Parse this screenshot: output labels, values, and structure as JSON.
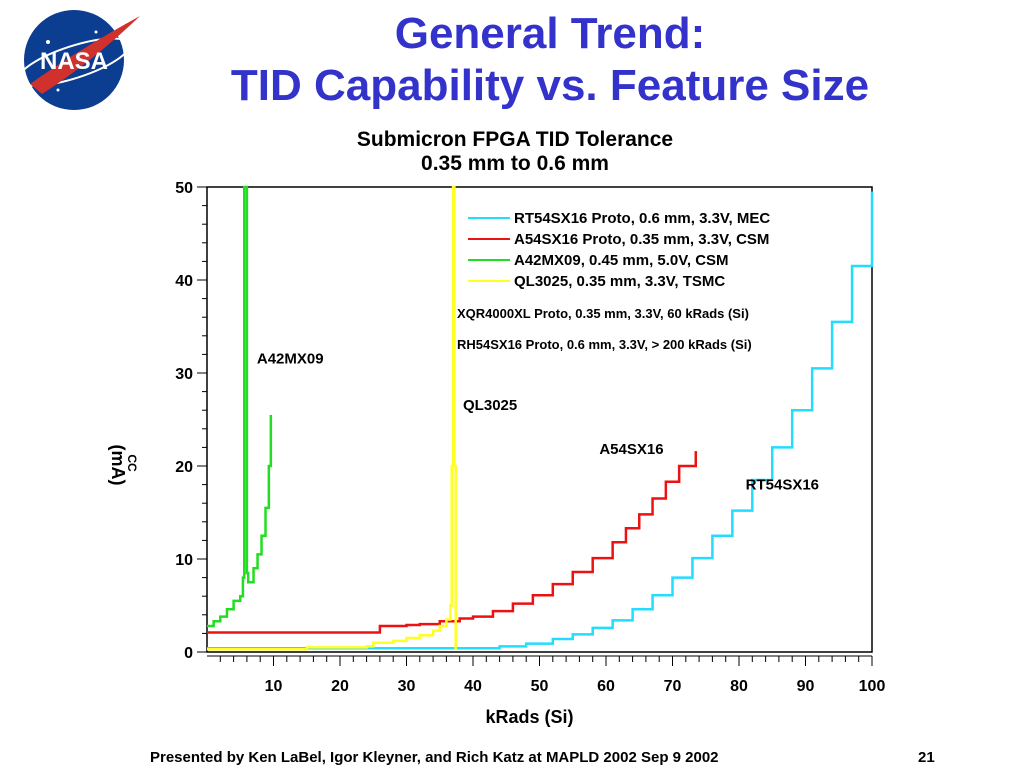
{
  "slide": {
    "title_line1": "General Trend:",
    "title_line2": "TID Capability vs. Feature Size",
    "footer": "Presented by Ken LaBel, Igor Kleyner, and Rich Katz at MAPLD 2002 Sep 9 2002",
    "page_number": "21",
    "logo_text": "NASA",
    "title_color": "#3333cc"
  },
  "chart_data": {
    "type": "line",
    "title": "Submicron FPGA TID Tolerance",
    "subtitle": "0.35 mm to 0.6 mm",
    "xlabel": "kRads (Si)",
    "ylabel": "(mA)",
    "ylabel_sub": "CC",
    "xlim": [
      0,
      100
    ],
    "ylim": [
      0,
      50
    ],
    "x_ticks": [
      10,
      20,
      30,
      40,
      50,
      60,
      70,
      80,
      90,
      100
    ],
    "y_ticks": [
      0,
      10,
      20,
      30,
      40,
      50
    ],
    "legend": [
      {
        "label": "RT54SX16 Proto, 0.6 mm, 3.3V, MEC",
        "color": "#22ddff"
      },
      {
        "label": "A54SX16 Proto, 0.35 mm, 3.3V, CSM",
        "color": "#ee1111"
      },
      {
        "label": "A42MX09, 0.45 mm, 5.0V, CSM",
        "color": "#22dd22"
      },
      {
        "label": "QL3025, 0.35 mm, 3.3V, TSMC",
        "color": "#ffff22"
      }
    ],
    "notes": [
      "XQR4000XL Proto, 0.35 mm, 3.3V, 60 kRads (Si)",
      "RH54SX16 Proto, 0.6 mm, 3.3V, > 200 kRads (Si)"
    ],
    "annotations": [
      {
        "text": "A42MX09",
        "x": 7.5,
        "y": 31
      },
      {
        "text": "QL3025",
        "x": 38.5,
        "y": 26
      },
      {
        "text": "A54SX16",
        "x": 59,
        "y": 21.3
      },
      {
        "text": "RT54SX16",
        "x": 81,
        "y": 17.5
      }
    ],
    "series": [
      {
        "name": "RT54SX16",
        "color": "#22ddff",
        "x": [
          0,
          30,
          38,
          44,
          48,
          52,
          55,
          58,
          61,
          64,
          67,
          70,
          73,
          76,
          79,
          82,
          85,
          88,
          91,
          94,
          97,
          100
        ],
        "y": [
          0.4,
          0.4,
          0.4,
          0.6,
          0.9,
          1.4,
          1.9,
          2.6,
          3.4,
          4.6,
          6.1,
          8.0,
          10.1,
          12.5,
          15.2,
          18.5,
          22.0,
          26.0,
          30.5,
          35.5,
          41.5,
          49.5
        ]
      },
      {
        "name": "A54SX16",
        "color": "#ee1111",
        "x": [
          0,
          25,
          26,
          30,
          32,
          35,
          38,
          40,
          43,
          46,
          49,
          52,
          55,
          58,
          61,
          63,
          65,
          67,
          69,
          71,
          73.5
        ],
        "y": [
          2.1,
          2.1,
          2.8,
          2.9,
          3.0,
          3.3,
          3.6,
          3.8,
          4.4,
          5.2,
          6.1,
          7.3,
          8.6,
          10.1,
          11.8,
          13.3,
          14.8,
          16.5,
          18.3,
          20.0,
          21.6
        ]
      },
      {
        "name": "A42MX09",
        "color": "#22dd22",
        "x": [
          0,
          1,
          2,
          3,
          4,
          5,
          5.4,
          5.6,
          5.8,
          6.0,
          6.2,
          7.0,
          7.6,
          8.2,
          8.8,
          9.3,
          9.6
        ],
        "y": [
          2.8,
          3.3,
          3.8,
          4.6,
          5.5,
          6.0,
          8.0,
          50,
          50,
          8.5,
          7.5,
          9.0,
          10.5,
          12.5,
          15.5,
          20.0,
          25.5
        ]
      },
      {
        "name": "QL3025",
        "color": "#ffff22",
        "x": [
          0,
          15,
          24,
          25,
          28,
          30,
          32,
          34,
          35,
          36,
          36.6,
          36.8,
          37.0,
          37.2,
          37.4
        ],
        "y": [
          0.3,
          0.5,
          0.6,
          1.0,
          1.2,
          1.5,
          1.8,
          2.3,
          2.8,
          3.5,
          5.0,
          20.0,
          50.0,
          20.0,
          0.2
        ]
      }
    ]
  }
}
